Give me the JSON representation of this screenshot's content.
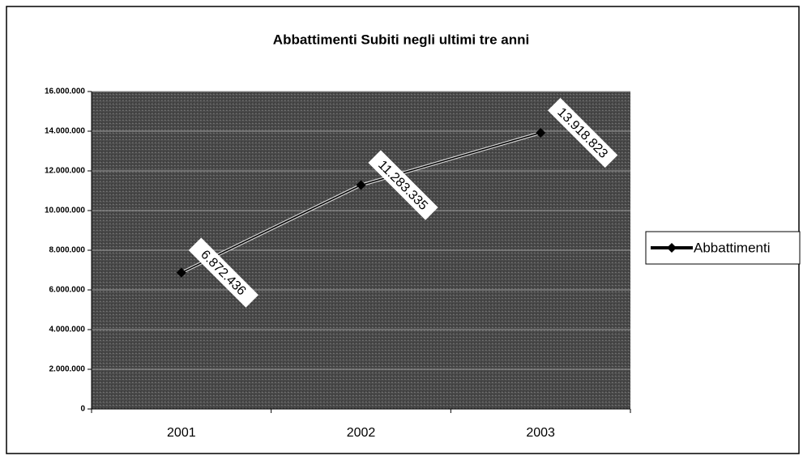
{
  "chart_data": {
    "type": "line",
    "title": "Abbattimenti Subiti negli ultimi tre anni",
    "categories": [
      "2001",
      "2002",
      "2003"
    ],
    "series": [
      {
        "name": "Abbattimenti",
        "color": "#000000",
        "values": [
          6872436,
          11283335,
          13918823
        ],
        "value_labels": [
          "6.872.436",
          "11.283.335",
          "13.918.823"
        ]
      }
    ],
    "ylim": [
      0,
      16000000
    ],
    "yticks": [
      {
        "value": 0,
        "label": "0"
      },
      {
        "value": 2000000,
        "label": "2.000.000"
      },
      {
        "value": 4000000,
        "label": "4.000.000"
      },
      {
        "value": 6000000,
        "label": "6.000.000"
      },
      {
        "value": 8000000,
        "label": "8.000.000"
      },
      {
        "value": 10000000,
        "label": "10.000.000"
      },
      {
        "value": 12000000,
        "label": "12.000.000"
      },
      {
        "value": 14000000,
        "label": "14.000.000"
      },
      {
        "value": 16000000,
        "label": "16.000.000"
      }
    ],
    "grid": true,
    "legend": "right",
    "plot_background": "#4a4a4a"
  }
}
